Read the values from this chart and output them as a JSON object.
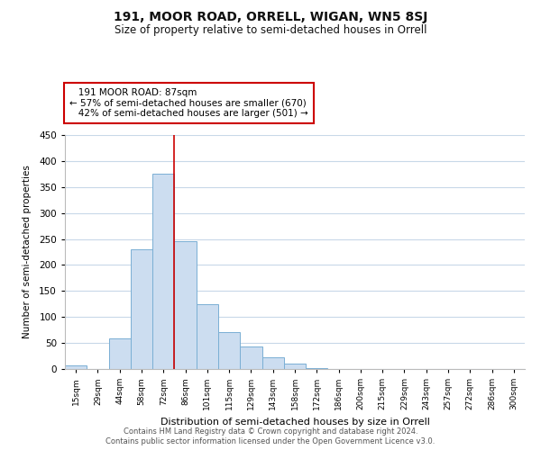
{
  "title": "191, MOOR ROAD, ORRELL, WIGAN, WN5 8SJ",
  "subtitle": "Size of property relative to semi-detached houses in Orrell",
  "xlabel": "Distribution of semi-detached houses by size in Orrell",
  "ylabel": "Number of semi-detached properties",
  "bar_labels": [
    "15sqm",
    "29sqm",
    "44sqm",
    "58sqm",
    "72sqm",
    "86sqm",
    "101sqm",
    "115sqm",
    "129sqm",
    "143sqm",
    "158sqm",
    "172sqm",
    "186sqm",
    "200sqm",
    "215sqm",
    "229sqm",
    "243sqm",
    "257sqm",
    "272sqm",
    "286sqm",
    "300sqm"
  ],
  "bar_values": [
    7,
    0,
    58,
    230,
    375,
    245,
    124,
    71,
    44,
    22,
    10,
    2,
    0,
    0,
    0,
    0,
    0,
    0,
    0,
    0,
    0
  ],
  "bar_color": "#ccddf0",
  "bar_edge_color": "#7aafd4",
  "ylim": [
    0,
    450
  ],
  "yticks": [
    0,
    50,
    100,
    150,
    200,
    250,
    300,
    350,
    400,
    450
  ],
  "property_label": "191 MOOR ROAD: 87sqm",
  "smaller_pct": 57,
  "smaller_count": 670,
  "larger_pct": 42,
  "larger_count": 501,
  "vline_color": "#cc0000",
  "annotation_box_edge_color": "#cc0000",
  "footer_line1": "Contains HM Land Registry data © Crown copyright and database right 2024.",
  "footer_line2": "Contains public sector information licensed under the Open Government Licence v3.0.",
  "background_color": "#ffffff",
  "grid_color": "#c8d8e8"
}
